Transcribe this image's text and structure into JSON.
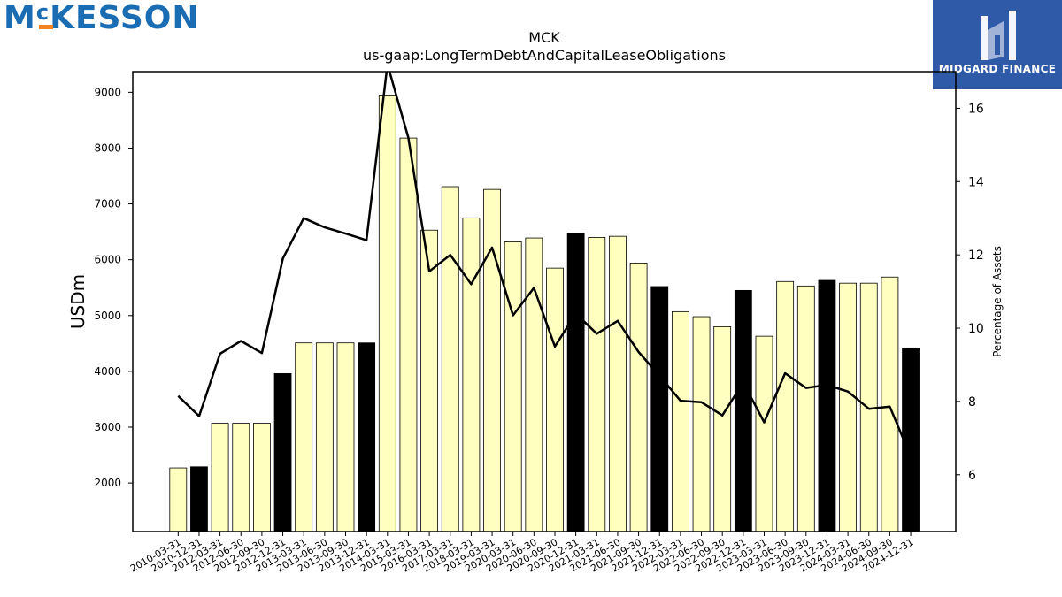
{
  "logos": {
    "left_text": "MCKESSON",
    "left_prefix": "M",
    "left_small_c": "c",
    "left_rest": "KESSON",
    "right_text": "MIDGARD FINANCE"
  },
  "colors": {
    "bar_default": "#ffffc0",
    "bar_highlight": "#000000",
    "line": "#000000",
    "logo_blue": "#1a6db3",
    "logo_orange": "#f58220",
    "midgard_bg": "#2f5aa8"
  },
  "chart_data": {
    "type": "bar",
    "title": "MCK",
    "subtitle": "us-gaap:LongTermDebtAndCapitalLeaseObligations",
    "ylabel": "USDm",
    "y2label": "Percentage of Assets",
    "ylim": [
      1130,
      9370
    ],
    "y2lim": [
      4.45,
      17.0
    ],
    "yticks": [
      2000,
      3000,
      4000,
      5000,
      6000,
      7000,
      8000,
      9000
    ],
    "y2ticks": [
      6,
      8,
      10,
      12,
      14,
      16
    ],
    "categories": [
      "2010-03-31",
      "2010-12-31",
      "2012-03-31",
      "2012-06-30",
      "2012-09-30",
      "2012-12-31",
      "2013-03-31",
      "2013-06-30",
      "2013-09-30",
      "2013-12-31",
      "2014-03-31",
      "2015-03-31",
      "2016-03-31",
      "2017-03-31",
      "2018-03-31",
      "2019-03-31",
      "2020-03-31",
      "2020-06-30",
      "2020-09-30",
      "2020-12-31",
      "2021-03-31",
      "2021-06-30",
      "2021-09-30",
      "2021-12-31",
      "2022-03-31",
      "2022-06-30",
      "2022-09-30",
      "2022-12-31",
      "2023-03-31",
      "2023-06-30",
      "2023-09-30",
      "2023-12-31",
      "2024-03-31",
      "2024-06-30",
      "2024-09-30",
      "2024-12-31"
    ],
    "series": [
      {
        "type": "bar",
        "axis": "left",
        "values": [
          2270,
          2290,
          3070,
          3070,
          3070,
          3960,
          4510,
          4510,
          4510,
          4510,
          8950,
          8180,
          6530,
          7310,
          6750,
          7260,
          6320,
          6390,
          5850,
          6470,
          6400,
          6420,
          5940,
          5520,
          5070,
          4980,
          4800,
          5450,
          4630,
          5610,
          5530,
          5630,
          5580,
          5580,
          5690,
          4420
        ],
        "highlight": [
          false,
          true,
          false,
          false,
          false,
          true,
          false,
          false,
          false,
          true,
          false,
          false,
          false,
          false,
          false,
          false,
          false,
          false,
          false,
          true,
          false,
          false,
          false,
          true,
          false,
          false,
          false,
          true,
          false,
          false,
          false,
          true,
          false,
          false,
          false,
          true
        ]
      },
      {
        "type": "line",
        "axis": "right",
        "values": [
          8.15,
          7.6,
          9.3,
          9.65,
          9.32,
          11.9,
          13.0,
          12.75,
          12.58,
          12.4,
          17.2,
          15.2,
          11.55,
          12.0,
          11.2,
          12.2,
          10.35,
          11.1,
          9.5,
          10.4,
          9.85,
          10.2,
          9.35,
          8.7,
          8.02,
          7.98,
          7.62,
          8.52,
          7.43,
          8.77,
          8.37,
          8.45,
          8.27,
          7.8,
          7.86,
          6.5
        ]
      }
    ],
    "grid": false,
    "legend": "none"
  }
}
